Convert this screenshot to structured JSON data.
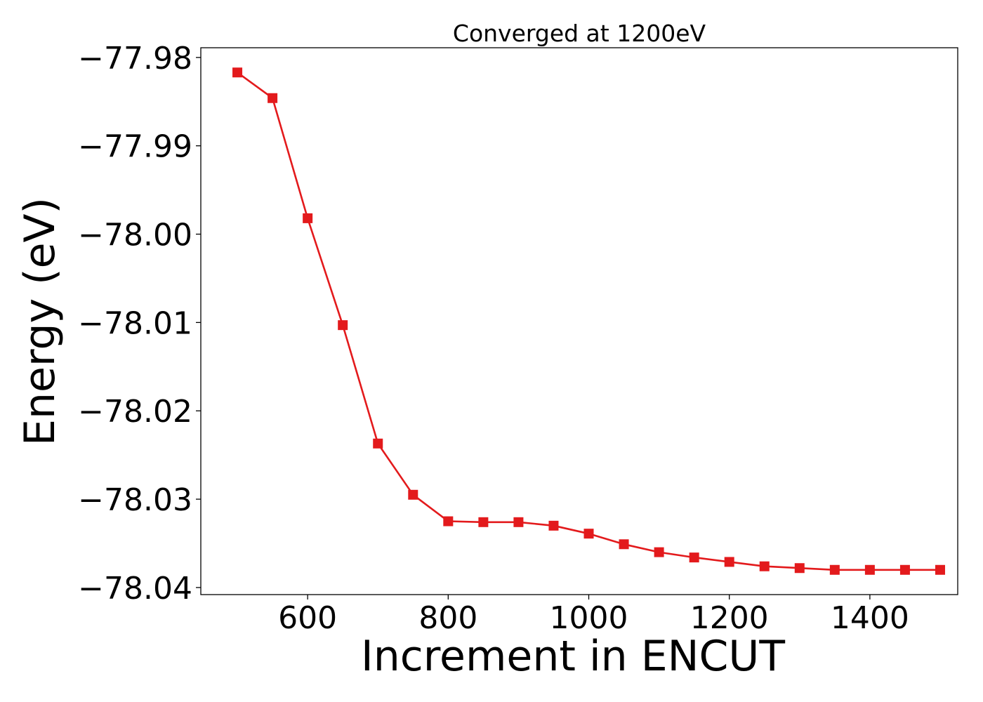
{
  "chart_data": {
    "type": "line",
    "title": "Converged at 1200eV",
    "xlabel": "Increment in ENCUT",
    "ylabel": "Energy (eV)",
    "xlim": [
      448,
      1525
    ],
    "ylim": [
      -78.0408,
      -77.9789
    ],
    "x_ticks": [
      600,
      800,
      1000,
      1200,
      1400
    ],
    "x_tick_labels": [
      "600",
      "800",
      "1000",
      "1200",
      "1400"
    ],
    "y_ticks": [
      -77.98,
      -77.99,
      -78.0,
      -78.01,
      -78.02,
      -78.03,
      -78.04
    ],
    "y_tick_labels": [
      "−77.98",
      "−77.99",
      "−78.00",
      "−78.01",
      "−78.02",
      "−78.03",
      "−78.04"
    ],
    "grid": false,
    "series": [
      {
        "color": "#e31a1c",
        "marker": "square",
        "x": [
          500,
          550,
          600,
          650,
          700,
          750,
          800,
          850,
          900,
          950,
          1000,
          1050,
          1100,
          1150,
          1200,
          1250,
          1300,
          1350,
          1400,
          1450,
          1500
        ],
        "y": [
          -77.9817,
          -77.9846,
          -77.9982,
          -78.0103,
          -78.0237,
          -78.0295,
          -78.0325,
          -78.0326,
          -78.0326,
          -78.033,
          -78.0339,
          -78.0351,
          -78.036,
          -78.0366,
          -78.0371,
          -78.0376,
          -78.0378,
          -78.038,
          -78.038,
          -78.038,
          -78.038
        ]
      }
    ]
  }
}
